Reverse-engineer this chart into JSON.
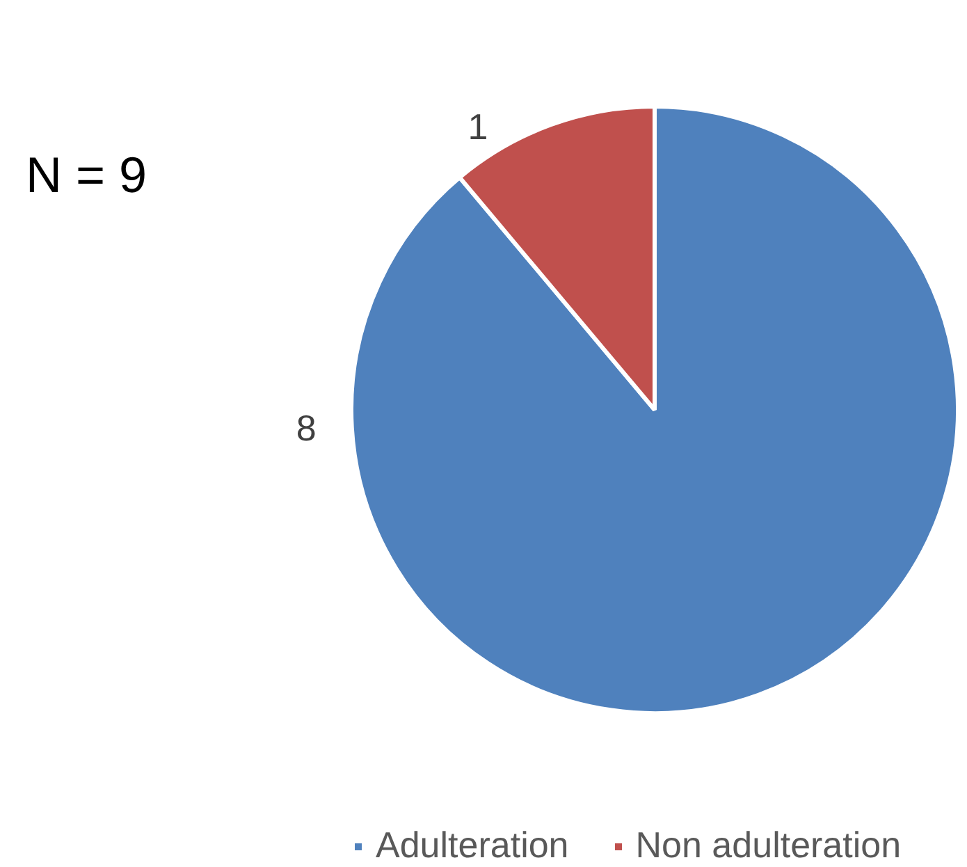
{
  "chart_data": {
    "type": "pie",
    "categories": [
      "Adulteration",
      "Non adulteration"
    ],
    "values": [
      8,
      1
    ],
    "colors": [
      "#4f81bd",
      "#c0504d"
    ],
    "data_labels": true,
    "legend": "bottom",
    "annotations": [
      "N = 9"
    ]
  }
}
